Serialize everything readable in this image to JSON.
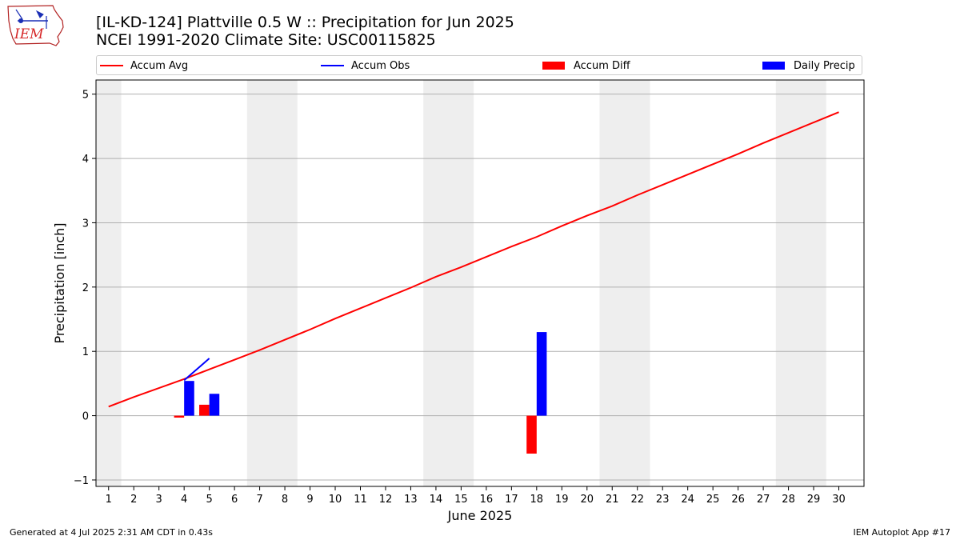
{
  "header": {
    "title_line1": "[IL-KD-124] Plattville 0.5 W :: Precipitation for Jun 2025",
    "title_line2": "NCEI 1991-2020 Climate Site: USC00115825"
  },
  "logo": {
    "text": "IEM",
    "color": "#d62728"
  },
  "legend": {
    "placement": "top, above plot, horizontal",
    "items": [
      {
        "label": "Accum Avg",
        "kind": "line",
        "color": "#ff0000"
      },
      {
        "label": "Accum Obs",
        "kind": "line",
        "color": "#0000ff"
      },
      {
        "label": "Accum Diff",
        "kind": "bar",
        "color": "#ff0000"
      },
      {
        "label": "Daily Precip",
        "kind": "bar",
        "color": "#0000ff"
      }
    ]
  },
  "footer": {
    "left": "Generated at 4 Jul 2025 2:31 AM CDT in 0.43s",
    "right": "IEM Autoplot App #17"
  },
  "chart_data": {
    "type": "bar",
    "title": "[IL-KD-124] Plattville 0.5 W :: Precipitation for Jun 2025",
    "subtitle": "NCEI 1991-2020 Climate Site: USC00115825",
    "xlabel": "June 2025",
    "ylabel": "Precipitation [inch]",
    "xlim": [
      0.5,
      31
    ],
    "ylim": [
      -1.1,
      5.22
    ],
    "x_ticks": [
      1,
      2,
      3,
      4,
      5,
      6,
      7,
      8,
      9,
      10,
      11,
      12,
      13,
      14,
      15,
      16,
      17,
      18,
      19,
      20,
      21,
      22,
      23,
      24,
      25,
      26,
      27,
      28,
      29,
      30
    ],
    "y_ticks": [
      -1,
      0,
      1,
      2,
      3,
      4,
      5
    ],
    "grid": "horizontal",
    "weekend_shading": [
      [
        0.5,
        1.5
      ],
      [
        6.5,
        8.5
      ],
      [
        13.5,
        15.5
      ],
      [
        20.5,
        22.5
      ],
      [
        27.5,
        29.5
      ]
    ],
    "weekend_color": "#eeeeee",
    "colors": {
      "avg": "#ff0000",
      "obs": "#0000ff",
      "diff": "#ff0000",
      "daily": "#0000ff"
    },
    "series": [
      {
        "name": "Accum Avg",
        "type": "line",
        "x": [
          1,
          2,
          3,
          4,
          5,
          6,
          7,
          8,
          9,
          10,
          11,
          12,
          13,
          14,
          15,
          16,
          17,
          18,
          19,
          20,
          21,
          22,
          23,
          24,
          25,
          26,
          27,
          28,
          29,
          30
        ],
        "values": [
          0.14,
          0.29,
          0.43,
          0.57,
          0.72,
          0.87,
          1.02,
          1.18,
          1.34,
          1.51,
          1.67,
          1.83,
          1.99,
          2.16,
          2.31,
          2.47,
          2.63,
          2.78,
          2.95,
          3.11,
          3.26,
          3.43,
          3.59,
          3.75,
          3.91,
          4.07,
          4.24,
          4.4,
          4.56,
          4.72
        ]
      },
      {
        "name": "Accum Obs",
        "type": "line",
        "x": [
          4,
          5
        ],
        "values": [
          0.55,
          0.89
        ]
      },
      {
        "name": "Accum Diff",
        "type": "bar",
        "x": [
          4,
          5,
          18
        ],
        "values": [
          -0.03,
          0.17,
          -0.59
        ]
      },
      {
        "name": "Daily Precip",
        "type": "bar",
        "x": [
          4,
          5,
          18
        ],
        "values": [
          0.54,
          0.34,
          1.3
        ]
      }
    ]
  }
}
